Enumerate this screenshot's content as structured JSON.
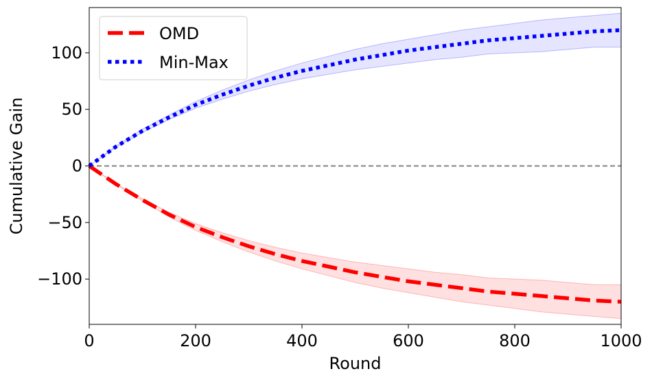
{
  "chart_data": {
    "type": "line",
    "title": "",
    "xlabel": "Round",
    "ylabel": "Cumulative Gain",
    "xlim": [
      0,
      1000
    ],
    "ylim": [
      -140,
      140
    ],
    "xticks": [
      0,
      200,
      400,
      600,
      800,
      1000
    ],
    "xtick_labels": [
      "0",
      "200",
      "400",
      "600",
      "800",
      "1000"
    ],
    "yticks": [
      -100,
      -50,
      0,
      50,
      100
    ],
    "ytick_labels": [
      "−100",
      "−50",
      "0",
      "50",
      "100"
    ],
    "grid": false,
    "legend_position": "top-left",
    "reference_line": {
      "y": 0,
      "style": "dashed",
      "color": "#808080"
    },
    "series": [
      {
        "name": "OMD",
        "color": "#ff0000",
        "style": "dashed",
        "x": [
          0,
          50,
          100,
          150,
          200,
          250,
          300,
          350,
          400,
          450,
          500,
          550,
          600,
          650,
          700,
          750,
          800,
          850,
          900,
          950,
          1000
        ],
        "y": [
          0,
          -16,
          -30,
          -43,
          -54,
          -63,
          -71,
          -78,
          -84,
          -89,
          -94,
          -98,
          -102,
          -105,
          -108,
          -111,
          -113,
          -115,
          -117,
          -119,
          -120
        ],
        "band_lower": [
          0,
          -16.5,
          -31,
          -45,
          -57,
          -67,
          -76,
          -84,
          -91,
          -97,
          -103,
          -108,
          -112,
          -116,
          -120,
          -123,
          -126,
          -129,
          -131,
          -133,
          -135
        ],
        "band_upper": [
          0,
          -15.5,
          -29,
          -41,
          -51,
          -59,
          -66,
          -72,
          -77,
          -81,
          -85,
          -88,
          -91,
          -94,
          -96,
          -99,
          -100,
          -101,
          -103,
          -105,
          -105
        ]
      },
      {
        "name": "Min-Max",
        "color": "#0000ff",
        "style": "dotted",
        "x": [
          0,
          50,
          100,
          150,
          200,
          250,
          300,
          350,
          400,
          450,
          500,
          550,
          600,
          650,
          700,
          750,
          800,
          850,
          900,
          950,
          1000
        ],
        "y": [
          0,
          17,
          31,
          43,
          54,
          63,
          71,
          78,
          84,
          89,
          94,
          98,
          102,
          105,
          108,
          111,
          113,
          115,
          117,
          119,
          120
        ],
        "band_lower": [
          0,
          16.5,
          29.5,
          41,
          51,
          59,
          66,
          72,
          77,
          81,
          85,
          88,
          91,
          94,
          96,
          99,
          100,
          101,
          103,
          105,
          105
        ],
        "band_upper": [
          0,
          17.5,
          32.5,
          45,
          57,
          67,
          76,
          84,
          91,
          97,
          103,
          108,
          112,
          116,
          120,
          123,
          126,
          129,
          131,
          133,
          135
        ]
      }
    ]
  }
}
